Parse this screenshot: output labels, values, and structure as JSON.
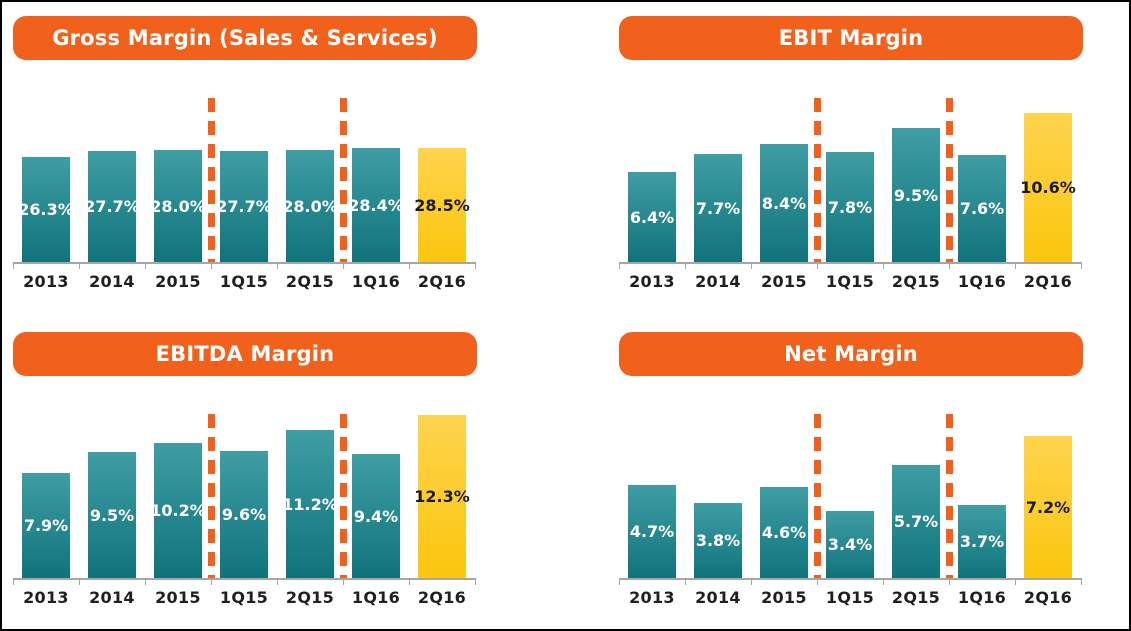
{
  "page": {
    "background": "#FFFFFF",
    "border_color": "#000000"
  },
  "colors": {
    "banner_orange": "#F2611C",
    "separator_orange": "#F2611C",
    "teal_bar_top": "#3F9EA4",
    "teal_bar_bottom": "#10737C",
    "yellow_bar_top": "#FFD44D",
    "yellow_bar_bottom": "#FAC60D",
    "axis_gray": "#A6A6A6",
    "value_label_on_teal": "#FFFFFF",
    "value_label_on_yellow": "#1A1A1A",
    "category_label": "#1F1F1F"
  },
  "chart_data": [
    {
      "type": "bar",
      "title": "Gross Margin (Sales & Services)",
      "categories": [
        "2013",
        "2014",
        "2015",
        "1Q15",
        "2Q15",
        "1Q16",
        "2Q16"
      ],
      "values": [
        26.3,
        27.7,
        28.0,
        27.7,
        28.0,
        28.4,
        28.5
      ],
      "labels": [
        "26.3%",
        "27.7%",
        "28.0%",
        "27.7%",
        "28.0%",
        "28.4%",
        "28.5%"
      ],
      "ylim": [
        0,
        45
      ],
      "highlight_index": 6,
      "separators_after_index": [
        2,
        4
      ],
      "grid": false,
      "legend": "none"
    },
    {
      "type": "bar",
      "title": "EBIT Margin",
      "categories": [
        "2013",
        "2014",
        "2015",
        "1Q15",
        "2Q15",
        "1Q16",
        "2Q16"
      ],
      "values": [
        6.4,
        7.7,
        8.4,
        7.8,
        9.5,
        7.6,
        10.6
      ],
      "labels": [
        "6.4%",
        "7.7%",
        "8.4%",
        "7.8%",
        "9.5%",
        "7.6%",
        "10.6%"
      ],
      "ylim": [
        0,
        12.8
      ],
      "highlight_index": 6,
      "separators_after_index": [
        2,
        4
      ],
      "grid": false,
      "legend": "none"
    },
    {
      "type": "bar",
      "title": "EBITDA Margin",
      "categories": [
        "2013",
        "2014",
        "2015",
        "1Q15",
        "2Q15",
        "1Q16",
        "2Q16"
      ],
      "values": [
        7.9,
        9.5,
        10.2,
        9.6,
        11.2,
        9.4,
        12.3
      ],
      "labels": [
        "7.9%",
        "9.5%",
        "10.2%",
        "9.6%",
        "11.2%",
        "9.4%",
        "12.3%"
      ],
      "ylim": [
        0,
        13.6
      ],
      "highlight_index": 6,
      "separators_after_index": [
        2,
        4
      ],
      "grid": false,
      "legend": "none"
    },
    {
      "type": "bar",
      "title": "Net Margin",
      "categories": [
        "2013",
        "2014",
        "2015",
        "1Q15",
        "2Q15",
        "1Q16",
        "2Q16"
      ],
      "values": [
        4.7,
        3.8,
        4.6,
        3.4,
        5.7,
        3.7,
        7.2
      ],
      "labels": [
        "4.7%",
        "3.8%",
        "4.6%",
        "3.4%",
        "5.7%",
        "3.7%",
        "7.2%"
      ],
      "ylim": [
        0,
        9.1
      ],
      "highlight_index": 6,
      "separators_after_index": [
        2,
        4
      ],
      "grid": false,
      "legend": "none"
    }
  ]
}
